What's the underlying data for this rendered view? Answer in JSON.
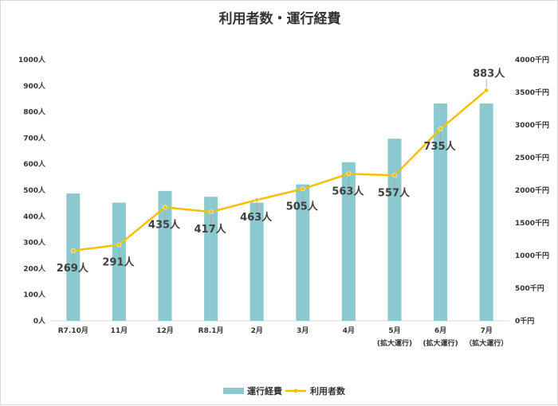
{
  "chart_data": {
    "type": "bar",
    "title": "利用者数・運行経費",
    "categories": [
      {
        "line1": "R7.10月",
        "line2": ""
      },
      {
        "line1": "11月",
        "line2": ""
      },
      {
        "line1": "12月",
        "line2": ""
      },
      {
        "line1": "R8.1月",
        "line2": ""
      },
      {
        "line1": "2月",
        "line2": ""
      },
      {
        "line1": "3月",
        "line2": ""
      },
      {
        "line1": "4月",
        "line2": ""
      },
      {
        "line1": "5月",
        "line2": "(拡大運行)"
      },
      {
        "line1": "6月",
        "line2": "(拡大運行)"
      },
      {
        "line1": "7月",
        "line2": "（拡大運行）"
      }
    ],
    "series": [
      {
        "name": "運行経費",
        "type": "bar",
        "axis": "right",
        "color": "#8cc9cf",
        "values": [
          1950,
          1810,
          1990,
          1900,
          1810,
          2090,
          2430,
          2790,
          3330,
          3330
        ]
      },
      {
        "name": "利用者数",
        "type": "line",
        "axis": "left",
        "color": "#f5c000",
        "values": [
          269,
          291,
          435,
          417,
          463,
          505,
          563,
          557,
          735,
          883
        ],
        "labels": [
          "269人",
          "291人",
          "435人",
          "417人",
          "463人",
          "505人",
          "563人",
          "557人",
          "735人",
          "883人"
        ]
      }
    ],
    "y_left": {
      "min": 0,
      "max": 1000,
      "step": 100,
      "tick_labels": [
        "0人",
        "100人",
        "200人",
        "300人",
        "400人",
        "500人",
        "600人",
        "700人",
        "800人",
        "900人",
        "1000人"
      ]
    },
    "y_right": {
      "min": 0,
      "max": 4000,
      "step": 500,
      "tick_labels": [
        "0千円",
        "500千円",
        "1000千円",
        "1500千円",
        "2000千円",
        "2500千円",
        "3000千円",
        "3500千円",
        "4000千円"
      ]
    },
    "grid": false,
    "legend": {
      "position": "bottom",
      "items": [
        {
          "label": "運行経費",
          "kind": "bar"
        },
        {
          "label": "利用者数",
          "kind": "line"
        }
      ]
    }
  }
}
